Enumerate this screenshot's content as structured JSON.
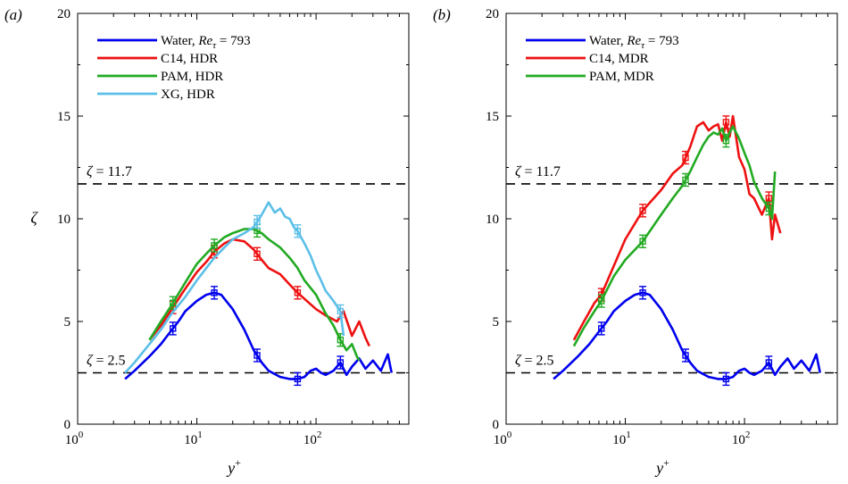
{
  "chart_data": [
    {
      "type": "line",
      "panel_label": "(a)",
      "xlabel": "y+",
      "ylabel": "ζ",
      "xscale": "log",
      "xlim": [
        1,
        600
      ],
      "ylim": [
        0,
        20
      ],
      "x_ticks": [
        "10^0",
        "10^1",
        "10^2"
      ],
      "y_ticks": [
        "0",
        "5",
        "10",
        "15",
        "20"
      ],
      "legend_position": "top-left",
      "grid": false,
      "reference_lines": [
        {
          "y": 11.7,
          "label": "ζ = 11.7"
        },
        {
          "y": 2.5,
          "label": "ζ = 2.5"
        }
      ],
      "series": [
        {
          "name": "Water, Reτ = 793",
          "color": "#0000ee",
          "x": [
            2.5,
            3,
            4,
            5,
            6,
            7,
            8,
            10,
            12,
            14,
            16,
            20,
            25,
            30,
            35,
            40,
            50,
            60,
            70,
            80,
            90,
            100,
            110,
            120,
            140,
            160,
            180,
            200,
            230,
            260,
            300,
            350,
            400,
            430
          ],
          "y": [
            2.2,
            2.6,
            3.3,
            3.9,
            4.5,
            5.0,
            5.5,
            6.0,
            6.3,
            6.4,
            6.3,
            5.6,
            4.6,
            3.6,
            3.0,
            2.6,
            2.3,
            2.2,
            2.2,
            2.3,
            2.6,
            2.7,
            2.5,
            2.4,
            2.6,
            3.0,
            2.4,
            2.8,
            3.2,
            2.7,
            3.1,
            2.6,
            3.4,
            2.5
          ],
          "error_bars_at": [
            6.3,
            14,
            32,
            70,
            160
          ]
        },
        {
          "name": "C14, HDR",
          "color": "#ee1111",
          "x": [
            4,
            5,
            6,
            8,
            10,
            12,
            14,
            17,
            20,
            25,
            30,
            35,
            40,
            50,
            60,
            70,
            80,
            100,
            120,
            150,
            170,
            200,
            230,
            260,
            280
          ],
          "y": [
            4.1,
            4.8,
            5.5,
            6.6,
            7.4,
            7.9,
            8.4,
            8.8,
            9.0,
            8.9,
            8.5,
            8.0,
            7.6,
            7.3,
            6.8,
            6.4,
            6.1,
            5.6,
            5.3,
            5.0,
            5.5,
            4.3,
            5.0,
            4.2,
            3.8
          ],
          "error_bars_at": [
            6.3,
            14,
            32,
            70
          ]
        },
        {
          "name": "PAM, HDR",
          "color": "#22aa22",
          "x": [
            4,
            5,
            6,
            8,
            10,
            12,
            14,
            17,
            20,
            25,
            30,
            35,
            40,
            50,
            60,
            70,
            80,
            100,
            120,
            140,
            160,
            180,
            200,
            220,
            230
          ],
          "y": [
            4.1,
            5.0,
            5.7,
            6.9,
            7.8,
            8.3,
            8.7,
            9.1,
            9.3,
            9.5,
            9.5,
            9.3,
            9.0,
            8.6,
            8.1,
            7.6,
            7.0,
            6.3,
            5.4,
            4.8,
            4.1,
            3.6,
            3.9,
            3.3,
            3.1
          ],
          "error_bars_at": [
            6.3,
            14,
            32,
            160
          ]
        },
        {
          "name": "XG, HDR",
          "color": "#5bbfe8",
          "x": [
            2.5,
            3,
            4,
            5,
            6,
            8,
            10,
            12,
            14,
            17,
            20,
            25,
            30,
            35,
            40,
            45,
            50,
            55,
            60,
            65,
            70,
            80,
            90,
            100,
            110,
            120,
            140,
            160,
            170
          ],
          "y": [
            2.5,
            3.0,
            3.9,
            4.6,
            5.3,
            6.2,
            7.0,
            7.6,
            8.1,
            8.6,
            9.0,
            9.3,
            9.6,
            10.2,
            10.8,
            10.3,
            10.5,
            10.1,
            10.0,
            9.6,
            9.4,
            8.8,
            8.2,
            7.5,
            7.0,
            6.5,
            6.0,
            5.5,
            4.3
          ],
          "error_bars_at": [
            32,
            70,
            160
          ]
        }
      ]
    },
    {
      "type": "line",
      "panel_label": "(b)",
      "xlabel": "y+",
      "ylabel": "",
      "xscale": "log",
      "xlim": [
        1,
        600
      ],
      "ylim": [
        0,
        20
      ],
      "x_ticks": [
        "10^0",
        "10^1",
        "10^2"
      ],
      "y_ticks": [
        "0",
        "5",
        "10",
        "15",
        "20"
      ],
      "legend_position": "top-left",
      "grid": false,
      "reference_lines": [
        {
          "y": 11.7,
          "label": "ζ = 11.7"
        },
        {
          "y": 2.5,
          "label": "ζ = 2.5"
        }
      ],
      "series": [
        {
          "name": "Water, Reτ = 793",
          "color": "#0000ee",
          "x": [
            2.5,
            3,
            4,
            5,
            6,
            7,
            8,
            10,
            12,
            14,
            16,
            20,
            25,
            30,
            35,
            40,
            50,
            60,
            70,
            80,
            90,
            100,
            110,
            120,
            140,
            160,
            180,
            200,
            230,
            260,
            300,
            350,
            400,
            430
          ],
          "y": [
            2.2,
            2.6,
            3.3,
            3.9,
            4.5,
            5.0,
            5.5,
            6.0,
            6.3,
            6.4,
            6.3,
            5.6,
            4.6,
            3.6,
            3.0,
            2.6,
            2.3,
            2.2,
            2.2,
            2.3,
            2.6,
            2.7,
            2.5,
            2.4,
            2.6,
            3.0,
            2.4,
            2.8,
            3.2,
            2.7,
            3.1,
            2.6,
            3.4,
            2.5
          ],
          "error_bars_at": [
            6.3,
            14,
            32,
            70,
            160
          ]
        },
        {
          "name": "C14, MDR",
          "color": "#ee1111",
          "x": [
            3.7,
            4.5,
            5.5,
            6.3,
            8,
            10,
            14,
            20,
            25,
            30,
            35,
            40,
            45,
            50,
            55,
            60,
            65,
            70,
            75,
            80,
            90,
            100,
            110,
            120,
            140,
            160,
            170,
            180,
            200
          ],
          "y": [
            4.1,
            5.0,
            5.9,
            6.3,
            7.7,
            9.0,
            10.4,
            11.4,
            12.2,
            12.6,
            13.5,
            14.5,
            14.7,
            14.3,
            14.5,
            14.6,
            13.8,
            14.7,
            14.0,
            15.0,
            13.0,
            12.4,
            11.2,
            11.0,
            10.2,
            11.0,
            9.0,
            10.2,
            9.3
          ],
          "error_bars_at": [
            6.3,
            14,
            32,
            70,
            160
          ]
        },
        {
          "name": "PAM, MDR",
          "color": "#22aa22",
          "x": [
            3.7,
            4.5,
            5.5,
            6.3,
            8,
            10,
            14,
            20,
            25,
            30,
            35,
            40,
            45,
            50,
            55,
            60,
            65,
            70,
            75,
            80,
            90,
            100,
            110,
            120,
            140,
            160,
            170,
            180
          ],
          "y": [
            3.8,
            4.7,
            5.5,
            6.0,
            7.2,
            8.0,
            8.9,
            10.2,
            11.0,
            11.6,
            12.3,
            13.0,
            13.6,
            14.0,
            14.2,
            14.1,
            14.4,
            13.8,
            14.2,
            14.5,
            13.9,
            13.2,
            12.6,
            11.8,
            11.0,
            10.5,
            10.0,
            12.3
          ],
          "error_bars_at": [
            6.3,
            14,
            32,
            70,
            160
          ]
        }
      ]
    }
  ]
}
